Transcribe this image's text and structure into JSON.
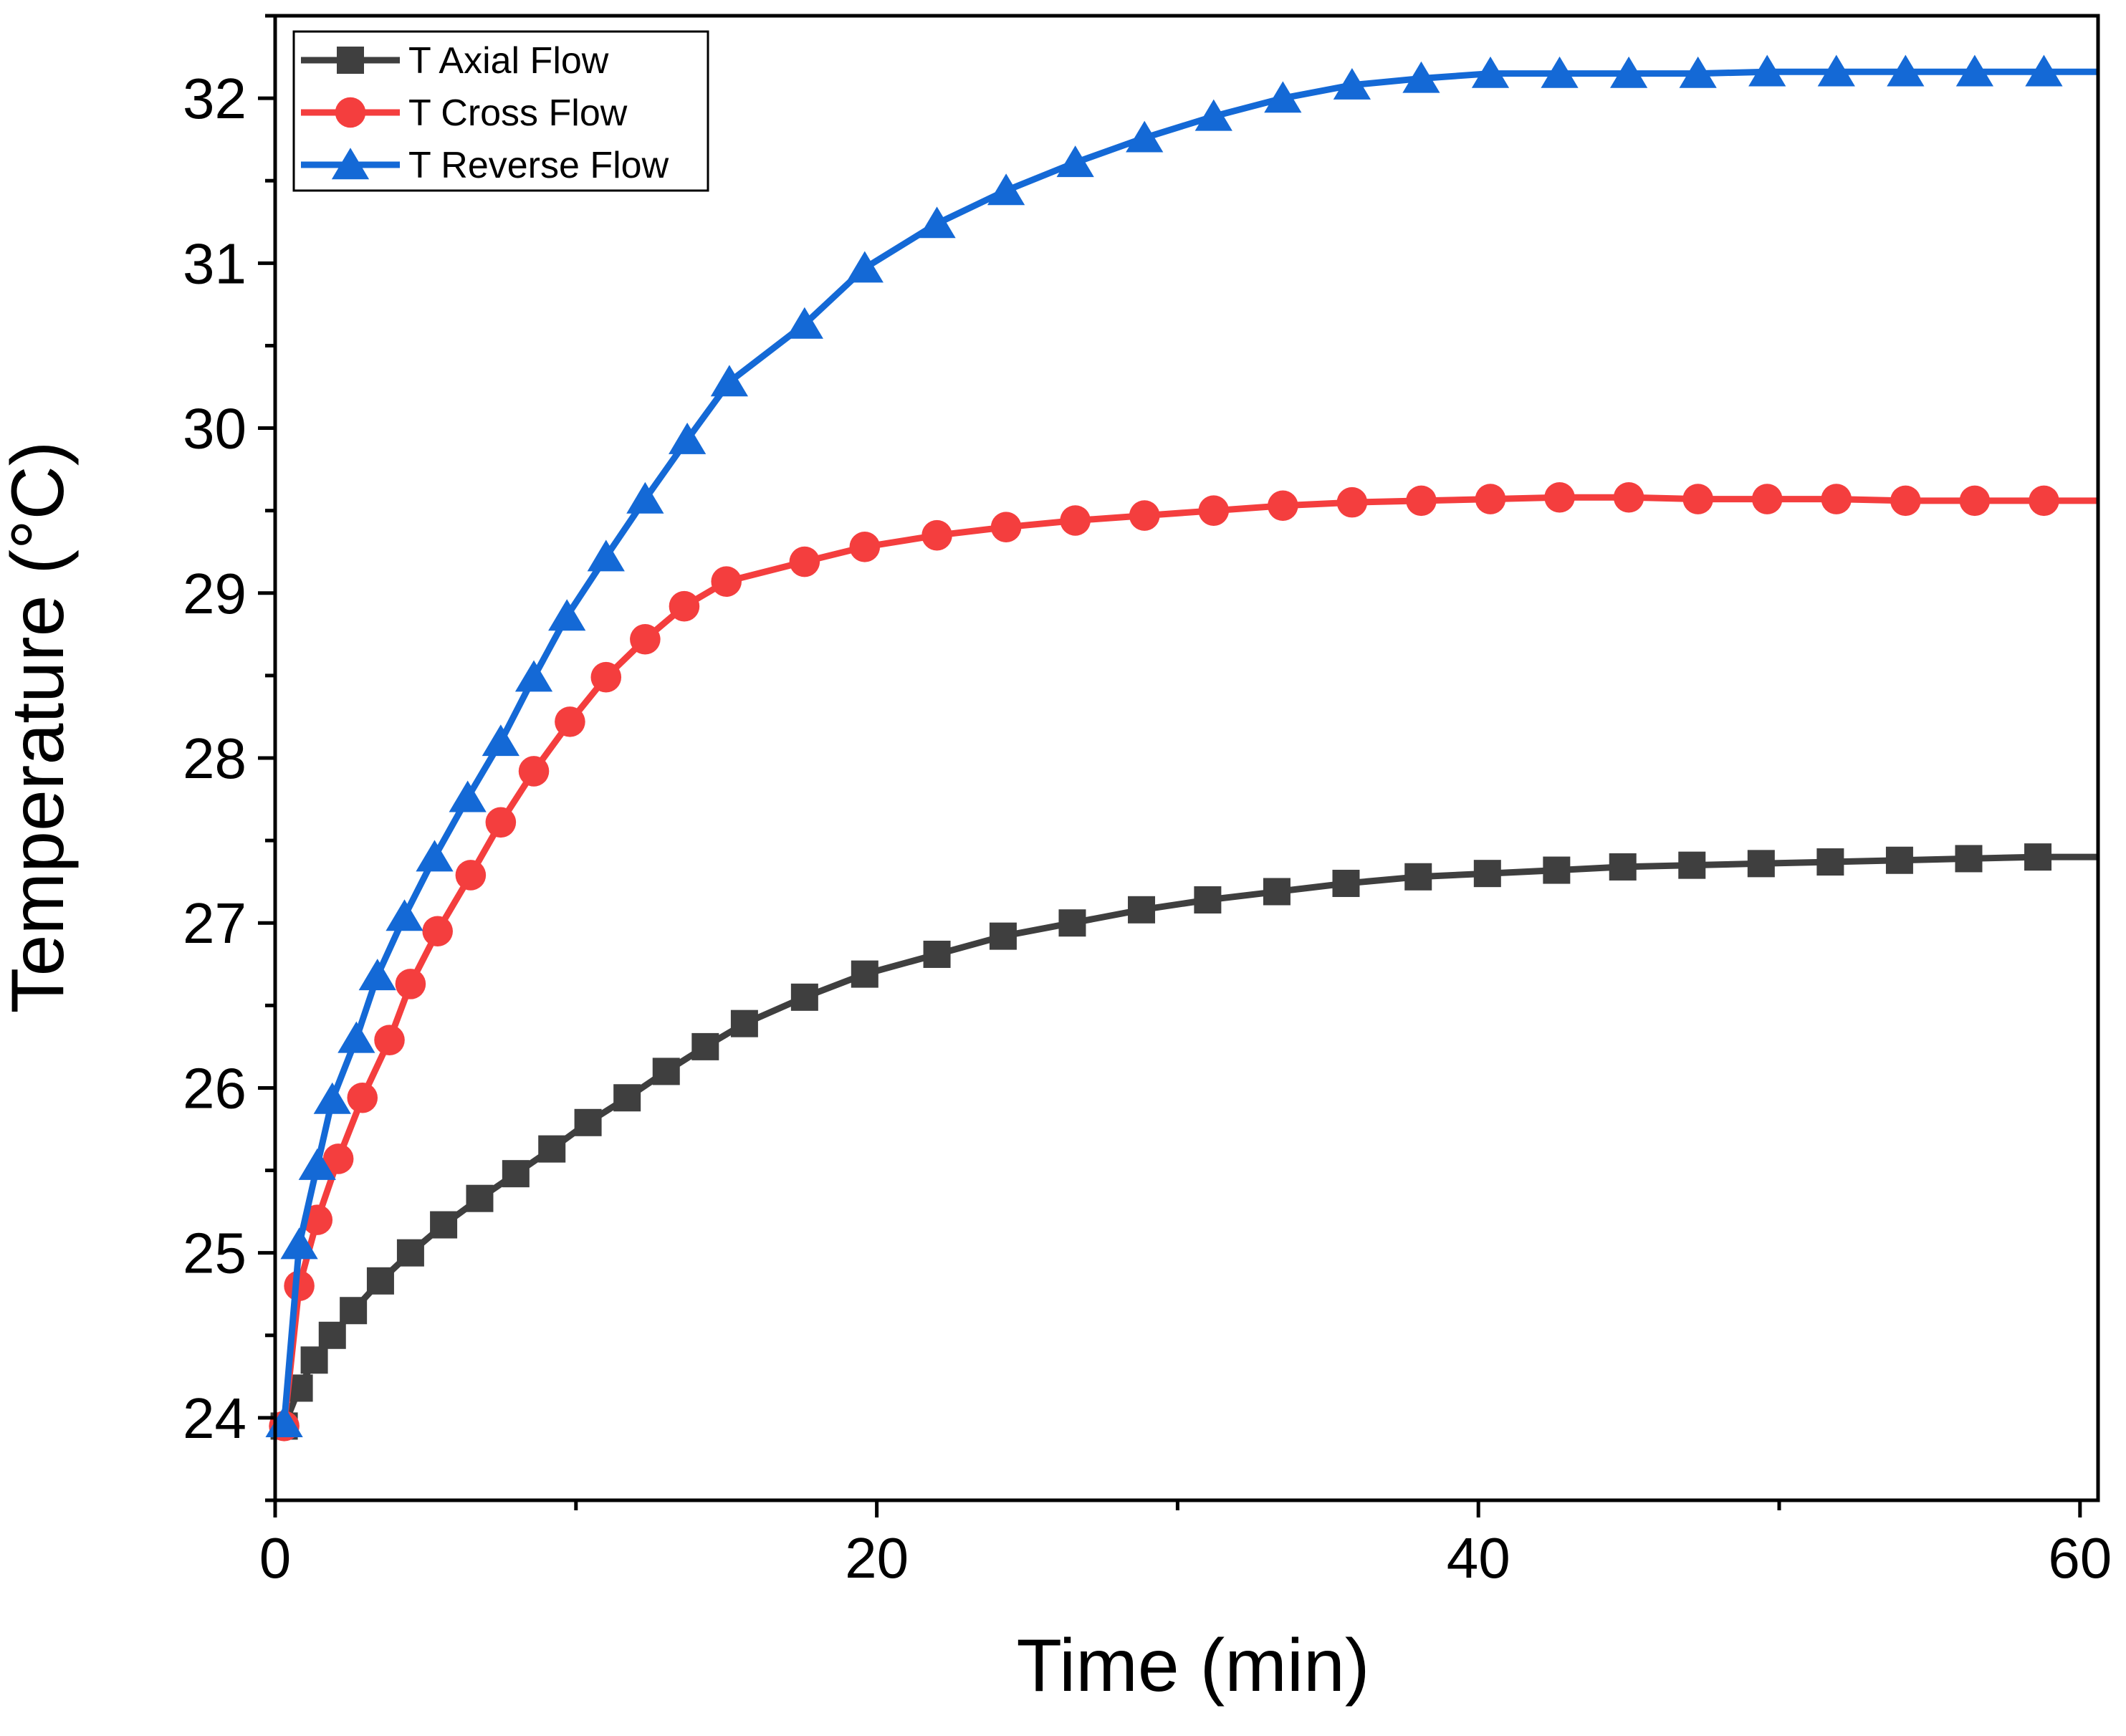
{
  "chart_data": {
    "type": "line",
    "title": "",
    "xlabel": "Time (min)",
    "ylabel": "Temperature (°C)",
    "xlim": [
      0,
      60.6
    ],
    "ylim": [
      23.5,
      32.5
    ],
    "xticks": [
      0,
      20,
      40,
      60
    ],
    "yticks": [
      24,
      25,
      26,
      27,
      28,
      29,
      30,
      31,
      32
    ],
    "grid": false,
    "legend_position": "top-left",
    "series": [
      {
        "name": "T Axial Flow",
        "color": "#3f3f3f",
        "marker": "square",
        "x": [
          0.3,
          0.8,
          1.3,
          1.9,
          2.6,
          3.5,
          4.5,
          5.6,
          6.8,
          8.0,
          9.2,
          10.4,
          11.7,
          13.0,
          14.3,
          15.6,
          17.6,
          19.6,
          22.0,
          24.2,
          26.5,
          28.8,
          31.0,
          33.3,
          35.6,
          38.0,
          40.3,
          42.6,
          44.8,
          47.1,
          49.4,
          51.7,
          54.0,
          56.3,
          58.6
        ],
        "y": [
          23.95,
          24.18,
          24.35,
          24.5,
          24.65,
          24.83,
          25.0,
          25.17,
          25.33,
          25.48,
          25.63,
          25.79,
          25.94,
          26.1,
          26.25,
          26.39,
          26.55,
          26.69,
          26.81,
          26.92,
          27.0,
          27.08,
          27.14,
          27.19,
          27.24,
          27.28,
          27.3,
          27.32,
          27.34,
          27.35,
          27.36,
          27.37,
          27.38,
          27.39,
          27.4
        ]
      },
      {
        "name": "T Cross Flow",
        "color": "#f43e3e",
        "marker": "circle",
        "x": [
          0.3,
          0.8,
          1.4,
          2.1,
          2.9,
          3.8,
          4.5,
          5.4,
          6.5,
          7.5,
          8.6,
          9.8,
          11.0,
          12.3,
          13.6,
          15.0,
          17.6,
          19.6,
          22.0,
          24.3,
          26.6,
          28.9,
          31.2,
          33.5,
          35.8,
          38.1,
          40.4,
          42.7,
          45.0,
          47.3,
          49.6,
          51.9,
          54.2,
          56.5,
          58.8
        ],
        "y": [
          23.95,
          24.8,
          25.2,
          25.57,
          25.94,
          26.29,
          26.63,
          26.95,
          27.29,
          27.61,
          27.92,
          28.22,
          28.49,
          28.72,
          28.92,
          29.07,
          29.19,
          29.28,
          29.35,
          29.4,
          29.44,
          29.47,
          29.5,
          29.53,
          29.55,
          29.56,
          29.57,
          29.58,
          29.58,
          29.57,
          29.57,
          29.57,
          29.56,
          29.56,
          29.56
        ]
      },
      {
        "name": "T Reverse Flow",
        "color": "#1469d6",
        "marker": "triangle",
        "x": [
          0.3,
          0.8,
          1.4,
          1.9,
          2.7,
          3.4,
          4.3,
          5.3,
          6.4,
          7.5,
          8.6,
          9.7,
          11.0,
          12.3,
          13.7,
          15.1,
          17.6,
          19.6,
          22.0,
          24.3,
          26.6,
          28.9,
          31.2,
          33.5,
          35.8,
          38.1,
          40.4,
          42.7,
          45.0,
          47.3,
          49.6,
          51.9,
          54.2,
          56.5,
          58.8
        ],
        "y": [
          23.97,
          25.05,
          25.53,
          25.93,
          26.3,
          26.68,
          27.04,
          27.4,
          27.76,
          28.1,
          28.49,
          28.86,
          29.22,
          29.57,
          29.93,
          30.28,
          30.63,
          30.97,
          31.24,
          31.44,
          31.61,
          31.76,
          31.89,
          32.0,
          32.08,
          32.12,
          32.15,
          32.15,
          32.15,
          32.15,
          32.16,
          32.16,
          32.16,
          32.16,
          32.16
        ]
      }
    ]
  }
}
